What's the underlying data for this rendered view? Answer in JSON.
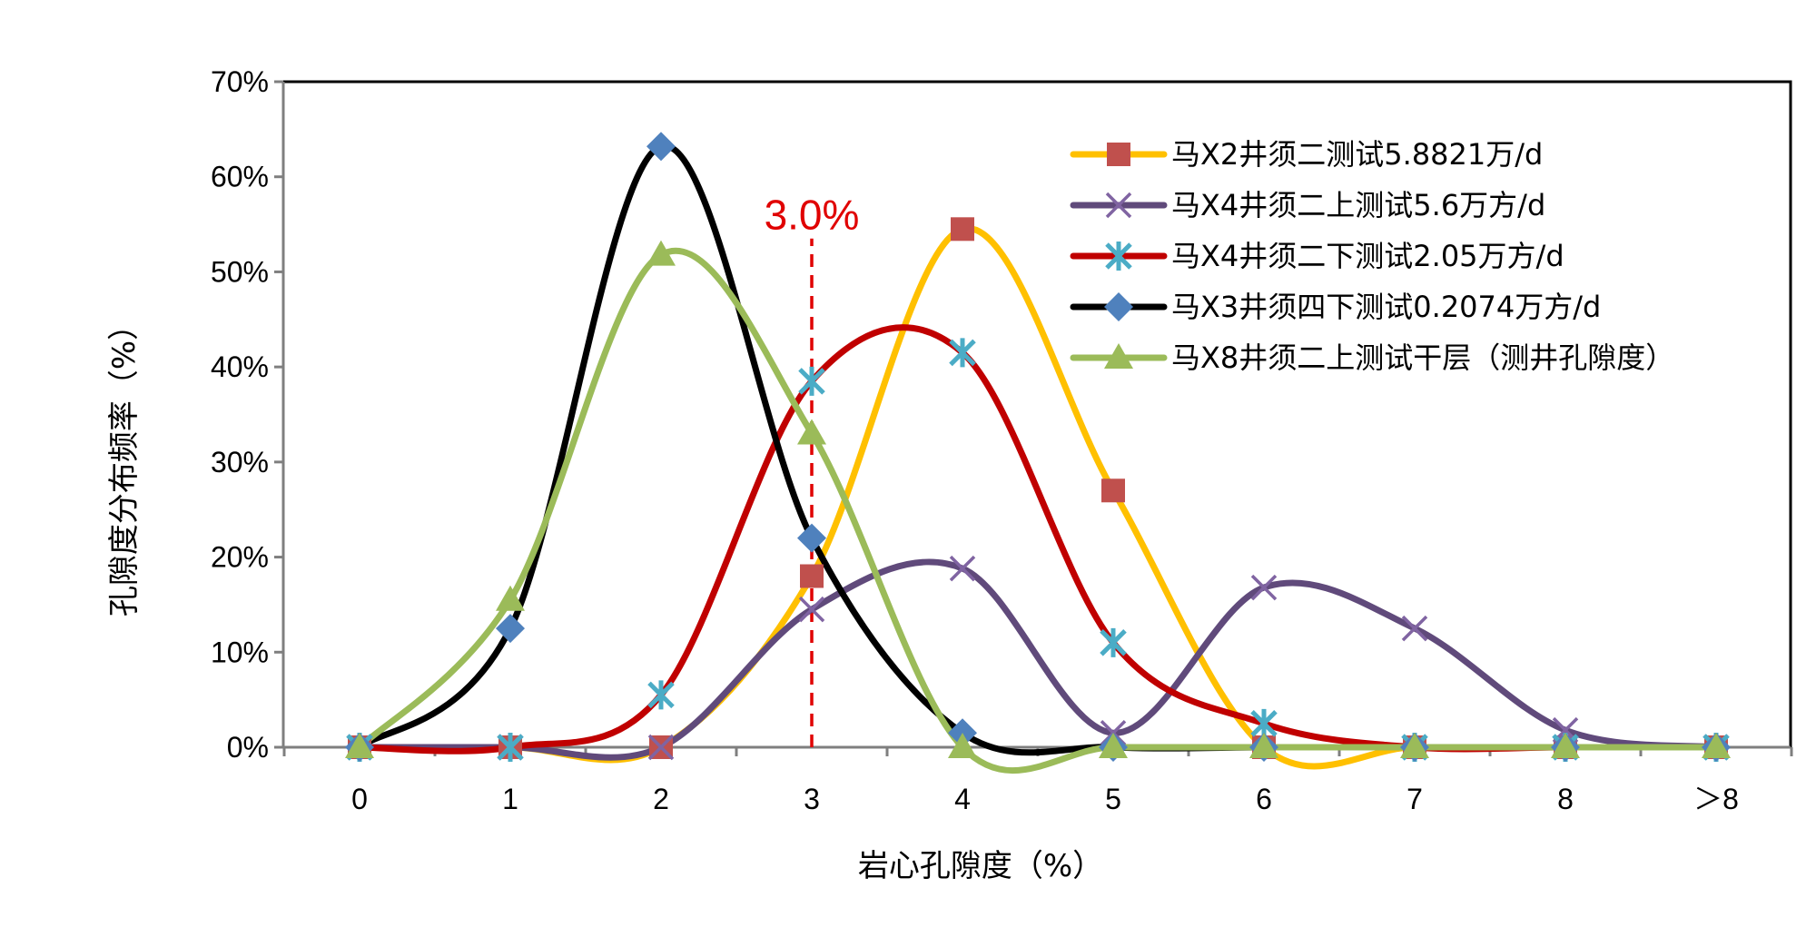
{
  "chart_data": {
    "type": "line",
    "title": "",
    "xlabel": "岩心孔隙度（%）",
    "ylabel": "孔隙度分布频率（%）",
    "categories": [
      "0",
      "1",
      "2",
      "3",
      "4",
      "5",
      "6",
      "7",
      "8",
      "＞8"
    ],
    "x": [
      0,
      1,
      2,
      3,
      4,
      5,
      6,
      7,
      8,
      9
    ],
    "ylim": [
      0,
      70
    ],
    "yticks": [
      "0%",
      "10%",
      "20%",
      "30%",
      "40%",
      "50%",
      "60%",
      "70%"
    ],
    "grid": false,
    "legend_position": "top-right",
    "series": [
      {
        "name": "马X2井须二测试5.8821万/d",
        "color": "#FFC000",
        "marker": "square",
        "marker_color": "#C0504D",
        "values": [
          0,
          0,
          0,
          18,
          54.5,
          27,
          0,
          0,
          0,
          0
        ]
      },
      {
        "name": "马X4井须二上测试5.6万方/d",
        "color": "#604A7B",
        "marker": "x",
        "marker_color": "#8064A2",
        "values": [
          0,
          0,
          0,
          14.5,
          18.8,
          1.5,
          16.8,
          12.5,
          1.8,
          0
        ]
      },
      {
        "name": "马X4井须二下测试2.05万方/d",
        "color": "#C00000",
        "marker": "star",
        "marker_color": "#4BACC6",
        "values": [
          0,
          0,
          5.5,
          38.5,
          41.5,
          11,
          2.5,
          0,
          0,
          0
        ]
      },
      {
        "name": "马X3井须四下测试0.2074万方/d",
        "color": "#000000",
        "marker": "diamond",
        "marker_color": "#4F81BD",
        "values": [
          0,
          12.5,
          63.2,
          22,
          1.5,
          0,
          0,
          0,
          0,
          0
        ]
      },
      {
        "name": "马X8井须二上测试干层（测井孔隙度）",
        "color": "#9BBB59",
        "marker": "triangle",
        "marker_color": "#9BBB59",
        "values": [
          0,
          15.5,
          51.8,
          33,
          0,
          0,
          0,
          0,
          0,
          0
        ]
      }
    ],
    "annotations": [
      {
        "text": "3.0%",
        "x": 3,
        "color": "#E00000",
        "style": "dashed-vertical-line"
      }
    ]
  }
}
